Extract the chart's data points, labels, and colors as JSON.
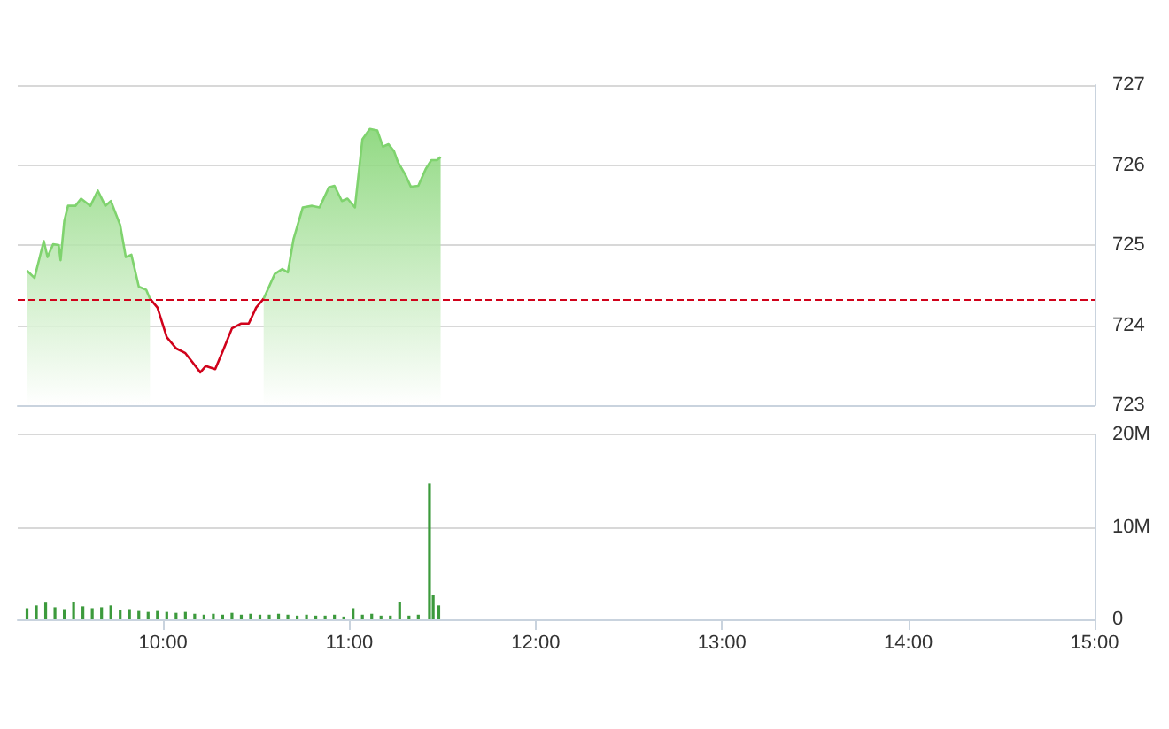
{
  "chart_data": [
    {
      "type": "area",
      "xlim": [
        9.22,
        15
      ],
      "ylim": [
        723,
        727
      ],
      "yticks": [
        723,
        724,
        725,
        726,
        727
      ],
      "grid": "y",
      "tick_labels": "y",
      "marker": "none",
      "ref_lines": [
        {
          "axis": "y",
          "value": 724.33,
          "color": "#d0021b",
          "line_style": "dashed"
        }
      ],
      "series": [
        {
          "color": "#7fd36e",
          "x": [
            9.27,
            9.31,
            9.36,
            9.38,
            9.41,
            9.44,
            9.45,
            9.47,
            9.49,
            9.53,
            9.56,
            9.61,
            9.65,
            9.69,
            9.72,
            9.77,
            9.8,
            9.83,
            9.87,
            9.91,
            9.93,
            10.2,
            10.54,
            10.6,
            10.64,
            10.67,
            10.7,
            10.75,
            10.8,
            10.84,
            10.89,
            10.92,
            10.96,
            10.99,
            11.03,
            11.07,
            11.11,
            11.15,
            11.18,
            11.21,
            11.24,
            11.26,
            11.3,
            11.33,
            11.37,
            11.41,
            11.44,
            11.47,
            11.49
          ],
          "values": [
            724.68,
            724.59,
            725.05,
            724.85,
            725.01,
            725.0,
            724.81,
            725.3,
            725.49,
            725.49,
            725.58,
            725.49,
            725.68,
            725.49,
            725.55,
            725.25,
            724.85,
            724.88,
            724.48,
            724.44,
            724.33,
            null,
            724.33,
            724.64,
            724.7,
            724.66,
            725.07,
            725.47,
            725.49,
            725.47,
            725.72,
            725.74,
            725.55,
            725.58,
            725.47,
            726.32,
            726.45,
            726.43,
            726.23,
            726.26,
            726.17,
            726.04,
            725.88,
            725.73,
            725.74,
            725.95,
            726.06,
            726.06,
            726.1
          ]
        },
        {
          "type": "line",
          "color": "#d0021b",
          "x": [
            9.93,
            9.97,
            10.02,
            10.07,
            10.12,
            10.15,
            10.2,
            10.23,
            10.28,
            10.32,
            10.37,
            10.42,
            10.46,
            10.5,
            10.54
          ],
          "values": [
            724.33,
            724.22,
            723.85,
            723.71,
            723.65,
            723.56,
            723.41,
            723.49,
            723.45,
            723.67,
            723.96,
            724.02,
            724.02,
            724.22,
            724.33
          ]
        }
      ]
    },
    {
      "type": "bar",
      "xlim": [
        9.22,
        15
      ],
      "xticks": [
        {
          "value": 10,
          "label": "10:00"
        },
        {
          "value": 11,
          "label": "11:00"
        },
        {
          "value": 12,
          "label": "12:00"
        },
        {
          "value": 13,
          "label": "13:00"
        },
        {
          "value": 14,
          "label": "14:00"
        },
        {
          "value": 15,
          "label": "15:00"
        }
      ],
      "ylim": [
        0,
        20
      ],
      "yticks": [
        0,
        {
          "value": 10,
          "label": "10M"
        },
        {
          "value": 20,
          "label": "20M"
        }
      ],
      "grid": "y",
      "color": "#3c9a3c",
      "x": [
        9.27,
        9.32,
        9.37,
        9.42,
        9.47,
        9.52,
        9.57,
        9.62,
        9.67,
        9.72,
        9.77,
        9.82,
        9.87,
        9.92,
        9.97,
        10.02,
        10.07,
        10.12,
        10.17,
        10.22,
        10.27,
        10.32,
        10.37,
        10.42,
        10.47,
        10.52,
        10.57,
        10.62,
        10.67,
        10.72,
        10.77,
        10.82,
        10.87,
        10.92,
        10.97,
        11.02,
        11.07,
        11.12,
        11.17,
        11.22,
        11.27,
        11.32,
        11.37,
        11.43,
        11.45,
        11.48
      ],
      "values": [
        1.2,
        1.5,
        1.8,
        1.3,
        1.1,
        1.9,
        1.4,
        1.2,
        1.3,
        1.5,
        1.0,
        1.1,
        0.9,
        0.8,
        0.9,
        0.8,
        0.7,
        0.8,
        0.6,
        0.5,
        0.6,
        0.5,
        0.7,
        0.5,
        0.6,
        0.5,
        0.5,
        0.6,
        0.5,
        0.4,
        0.5,
        0.4,
        0.4,
        0.5,
        0.3,
        1.2,
        0.5,
        0.6,
        0.4,
        0.4,
        1.9,
        0.4,
        0.5,
        14.7,
        2.6,
        1.5
      ]
    }
  ]
}
